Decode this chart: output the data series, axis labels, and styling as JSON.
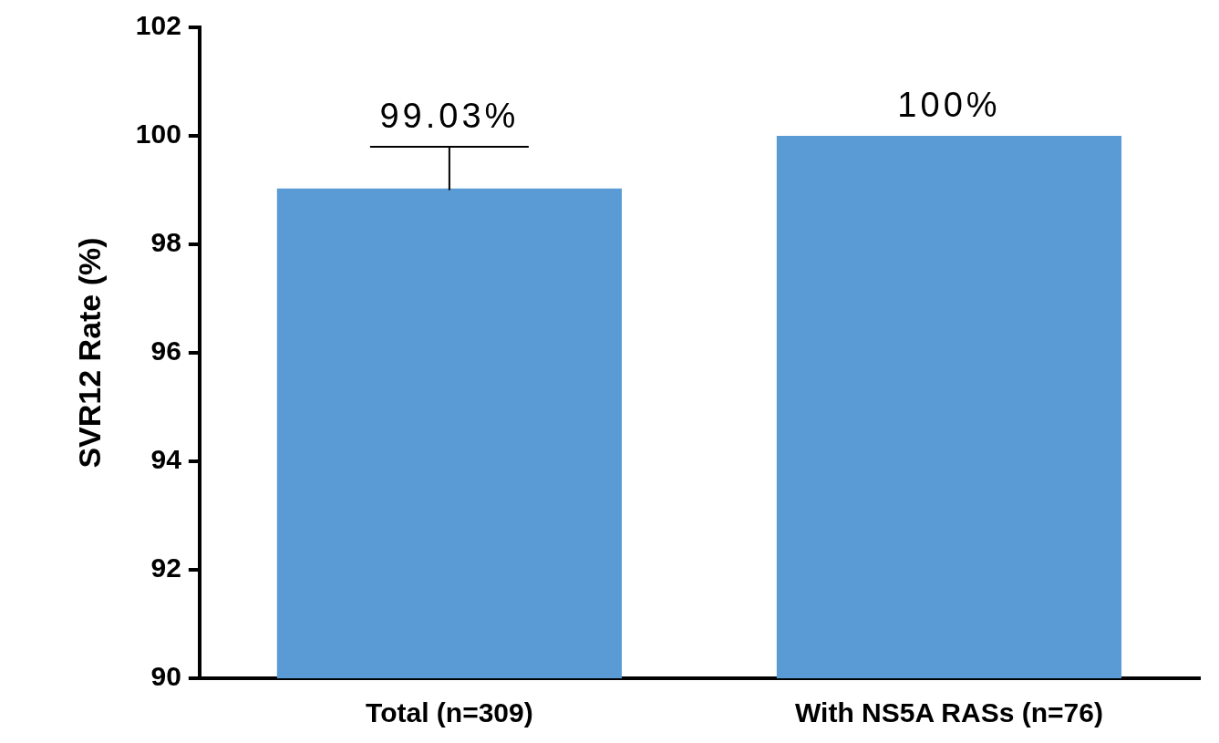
{
  "chart_data": {
    "type": "bar",
    "ylabel": "SVR12 Rate (%)",
    "categories": [
      "Total (n=309)",
      "With NS5A RASs (n=76)"
    ],
    "values": [
      99.03,
      100
    ],
    "value_labels": [
      "99.03%",
      "100%"
    ],
    "errors": [
      [
        99.0,
        99.8
      ],
      null
    ],
    "color": "#5b9bd5",
    "ylim": [
      90,
      102
    ],
    "yticks": [
      90,
      92,
      94,
      96,
      98,
      100,
      102
    ],
    "grid": false,
    "legend": false
  }
}
